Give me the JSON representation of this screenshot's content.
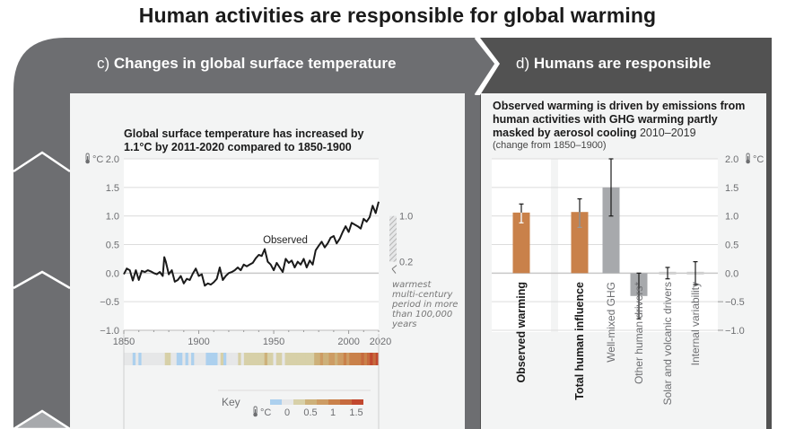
{
  "title": "Human activities are responsible for global warming",
  "panel_c": {
    "prefix": "c)",
    "label": "Changes in global surface temperature"
  },
  "panel_d": {
    "prefix": "d)",
    "label": "Humans are responsible"
  },
  "colors": {
    "panel_c_header": "#6d6e71",
    "panel_d_header": "#525252",
    "bar_orange": "#c9814a",
    "bar_grey": "#a7a9ac",
    "line": "#1a1a1a"
  },
  "chart_data": [
    {
      "type": "line",
      "title": "Global surface temperature has increased by 1.1°C by 2011-2020 compared to 1850-1900",
      "ylabel_unit": "°C",
      "unit_icon": "thermometer-icon",
      "xlim": [
        1850,
        2020
      ],
      "ylim": [
        -1.0,
        2.0
      ],
      "xticks": [
        "1850",
        "1900",
        "1950",
        "2000",
        "2020"
      ],
      "yticks": [
        "2.0",
        "1.5",
        "1.0",
        "0.5",
        "0.0",
        "−0.5",
        "−1.0"
      ],
      "grid": true,
      "series": [
        {
          "name": "Observed",
          "x": [
            1850,
            1852,
            1854,
            1856,
            1858,
            1860,
            1862,
            1864,
            1866,
            1868,
            1870,
            1872,
            1874,
            1876,
            1877,
            1878,
            1880,
            1882,
            1884,
            1886,
            1888,
            1890,
            1892,
            1894,
            1896,
            1898,
            1900,
            1902,
            1904,
            1906,
            1908,
            1910,
            1912,
            1914,
            1916,
            1918,
            1920,
            1922,
            1924,
            1926,
            1928,
            1930,
            1932,
            1934,
            1936,
            1938,
            1940,
            1942,
            1944,
            1946,
            1948,
            1950,
            1952,
            1954,
            1956,
            1958,
            1960,
            1962,
            1964,
            1966,
            1968,
            1970,
            1972,
            1974,
            1976,
            1978,
            1980,
            1982,
            1984,
            1986,
            1988,
            1990,
            1992,
            1994,
            1996,
            1998,
            2000,
            2002,
            2004,
            2006,
            2008,
            2010,
            2012,
            2014,
            2016,
            2018,
            2020
          ],
          "y": [
            -0.02,
            0.08,
            0.05,
            -0.13,
            0.05,
            -0.12,
            0.04,
            0.02,
            0.05,
            0.03,
            0.0,
            -0.02,
            0.02,
            -0.05,
            0.28,
            0.2,
            -0.02,
            0.05,
            -0.15,
            -0.12,
            -0.05,
            -0.18,
            -0.1,
            -0.12,
            -0.01,
            0.08,
            -0.05,
            -0.02,
            -0.22,
            -0.18,
            -0.2,
            -0.16,
            -0.1,
            0.1,
            -0.12,
            -0.05,
            0.0,
            0.02,
            0.05,
            0.1,
            0.05,
            0.15,
            0.12,
            0.15,
            0.18,
            0.26,
            0.32,
            0.3,
            0.42,
            0.2,
            0.15,
            0.05,
            0.18,
            0.1,
            0.02,
            0.25,
            0.18,
            0.22,
            0.1,
            0.2,
            0.15,
            0.25,
            0.1,
            0.22,
            0.15,
            0.4,
            0.48,
            0.55,
            0.45,
            0.52,
            0.62,
            0.65,
            0.52,
            0.6,
            0.72,
            0.82,
            0.72,
            0.88,
            0.85,
            0.82,
            0.78,
            0.95,
            0.9,
            0.98,
            1.18,
            1.05,
            1.25
          ]
        }
      ],
      "annotations": [
        {
          "text": "Observed"
        },
        {
          "text": "warmest multi-century period in more than 100,000 years",
          "range": [
            0.2,
            1.0
          ],
          "labels": [
            "1.0",
            "0.2"
          ]
        }
      ],
      "stripes": {
        "key_label": "Key",
        "unit": "°C",
        "key_ticks": [
          "0",
          "0.5",
          "1",
          "1.5"
        ],
        "key_colors": [
          "#acd0ee",
          "#e6e7e8",
          "#d7d0a8",
          "#cdb17a",
          "#cd9c64",
          "#c9814a",
          "#c66a3e",
          "#c1482f"
        ]
      }
    },
    {
      "type": "bar",
      "title": "Observed warming is driven by emissions from human activities with GHG warming partly masked by aerosol cooling",
      "title_period": "2010–2019",
      "subtitle": "(change from 1850–1900)",
      "ylabel_unit": "°C",
      "ylim": [
        -1.0,
        2.0
      ],
      "yticks": [
        "2.0",
        "1.5",
        "1.0",
        "0.5",
        "0.0",
        "−0.5",
        "−1.0"
      ],
      "grid": true,
      "categories": [
        "Observed warming",
        "Total human influence",
        "Well-mixed GHG",
        "Other human drivers*",
        "Solar and volcanic drivers",
        "Internal variability"
      ],
      "values": [
        1.06,
        1.07,
        1.5,
        -0.4,
        0.0,
        0.0
      ],
      "error_low": [
        0.88,
        0.8,
        1.0,
        -0.8,
        -0.1,
        -0.2
      ],
      "error_high": [
        1.21,
        1.3,
        2.0,
        0.0,
        0.1,
        0.2
      ],
      "bold_categories": [
        "Observed warming",
        "Total human influence"
      ]
    }
  ]
}
